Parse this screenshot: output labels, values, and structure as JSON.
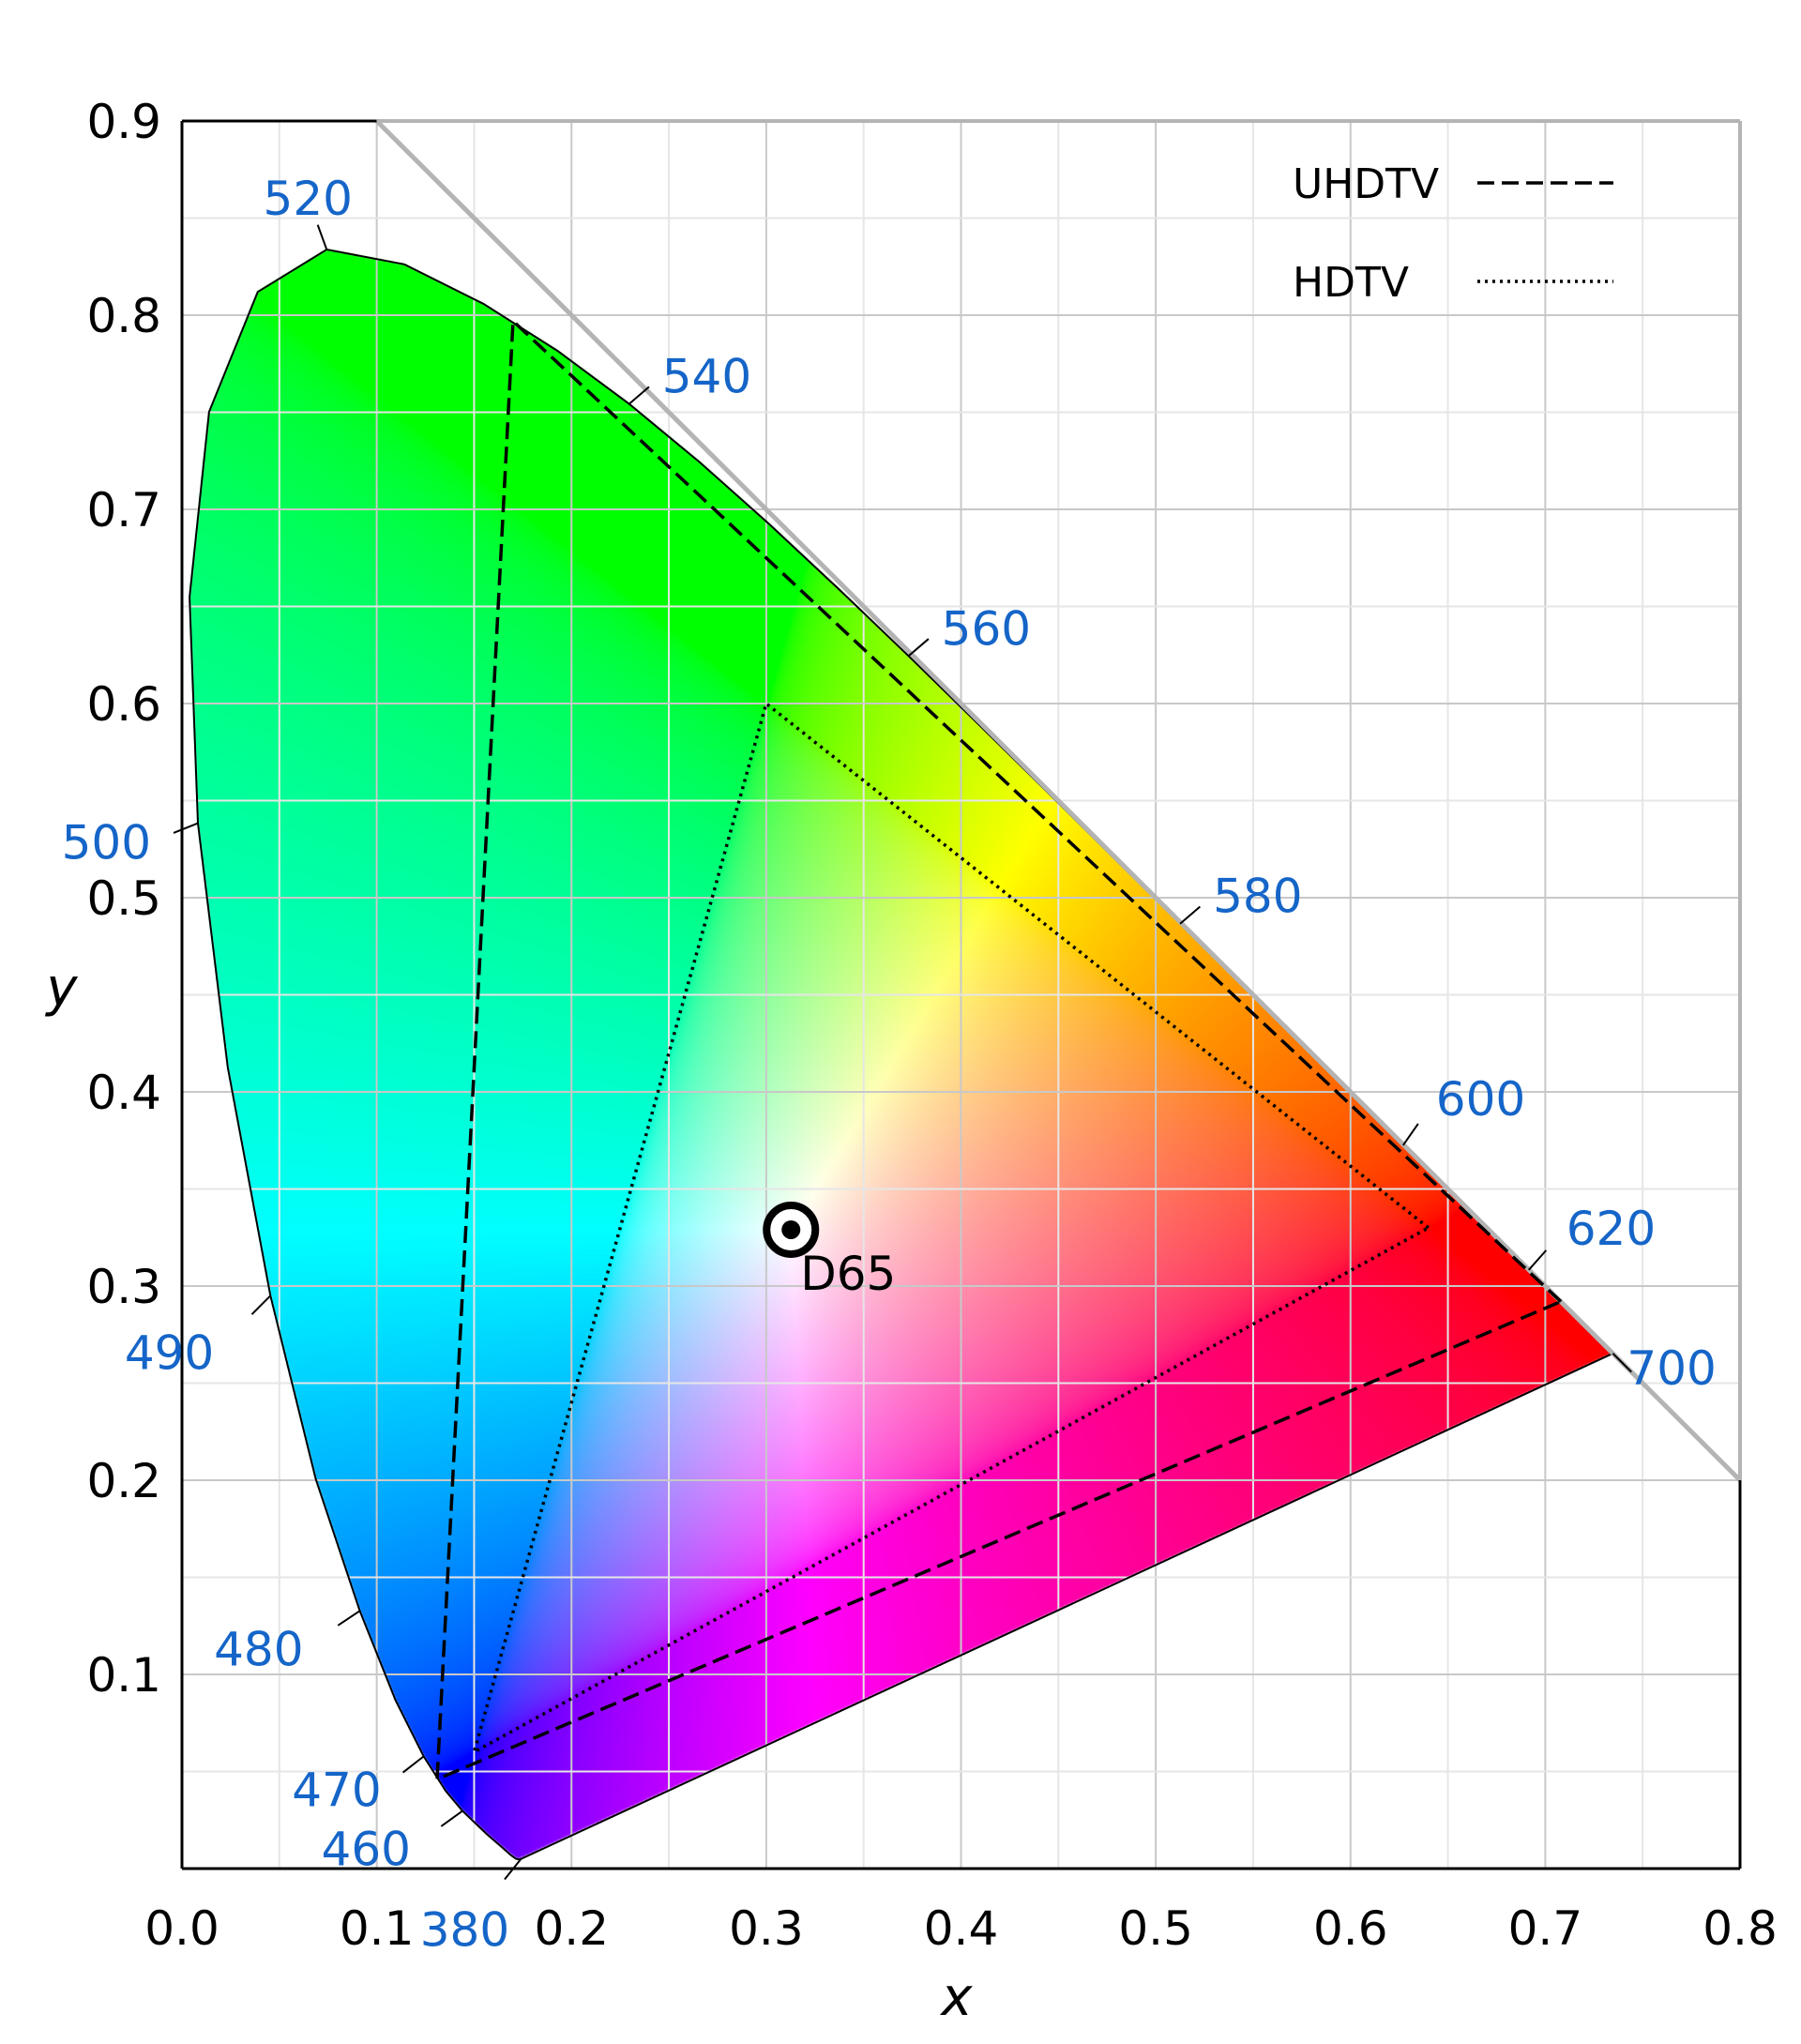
{
  "chart_data": {
    "type": "scatter",
    "title": "",
    "xlabel": "x",
    "ylabel": "y",
    "xlim": [
      0.0,
      0.8
    ],
    "ylim": [
      0.0,
      0.9
    ],
    "x_ticks": [
      "0.0",
      "0.1",
      "0.2",
      "0.3",
      "0.4",
      "0.5",
      "0.6",
      "0.7",
      "0.8"
    ],
    "y_ticks": [
      "0.1",
      "0.2",
      "0.3",
      "0.4",
      "0.5",
      "0.6",
      "0.7",
      "0.8",
      "0.9"
    ],
    "grid": true,
    "grid_minor_step": 0.05,
    "legend_position": "top-right",
    "boundary_line": {
      "from": [
        0.1,
        0.9
      ],
      "to": [
        0.8,
        0.2
      ],
      "color": "#b4b4b4"
    },
    "spectral_locus": [
      [
        380,
        0.1741,
        0.005
      ],
      [
        400,
        0.1733,
        0.0048
      ],
      [
        410,
        0.1726,
        0.0048
      ],
      [
        420,
        0.1714,
        0.0051
      ],
      [
        430,
        0.1689,
        0.0069
      ],
      [
        440,
        0.1644,
        0.0109
      ],
      [
        450,
        0.1566,
        0.0177
      ],
      [
        460,
        0.144,
        0.0297
      ],
      [
        465,
        0.1355,
        0.0399
      ],
      [
        470,
        0.1241,
        0.0578
      ],
      [
        475,
        0.1096,
        0.0868
      ],
      [
        480,
        0.0913,
        0.1327
      ],
      [
        485,
        0.0687,
        0.2007
      ],
      [
        490,
        0.0454,
        0.295
      ],
      [
        495,
        0.0235,
        0.4127
      ],
      [
        500,
        0.0082,
        0.5384
      ],
      [
        505,
        0.0039,
        0.6548
      ],
      [
        510,
        0.0139,
        0.7502
      ],
      [
        515,
        0.0389,
        0.812
      ],
      [
        520,
        0.0743,
        0.8338
      ],
      [
        525,
        0.1142,
        0.8262
      ],
      [
        530,
        0.1547,
        0.8059
      ],
      [
        535,
        0.1929,
        0.7816
      ],
      [
        540,
        0.2296,
        0.7543
      ],
      [
        545,
        0.2658,
        0.7243
      ],
      [
        550,
        0.3016,
        0.6923
      ],
      [
        555,
        0.3373,
        0.6589
      ],
      [
        560,
        0.3731,
        0.6245
      ],
      [
        565,
        0.4087,
        0.5896
      ],
      [
        570,
        0.4441,
        0.5547
      ],
      [
        575,
        0.4788,
        0.5202
      ],
      [
        580,
        0.5125,
        0.4866
      ],
      [
        585,
        0.5448,
        0.4544
      ],
      [
        590,
        0.5752,
        0.4242
      ],
      [
        595,
        0.6029,
        0.3965
      ],
      [
        600,
        0.627,
        0.3725
      ],
      [
        605,
        0.6482,
        0.3514
      ],
      [
        610,
        0.6658,
        0.334
      ],
      [
        620,
        0.6915,
        0.3083
      ],
      [
        630,
        0.7079,
        0.292
      ],
      [
        640,
        0.719,
        0.2809
      ],
      [
        650,
        0.726,
        0.274
      ],
      [
        660,
        0.73,
        0.27
      ],
      [
        680,
        0.7334,
        0.2666
      ],
      [
        700,
        0.7347,
        0.2653
      ]
    ],
    "wavelength_labels": [
      "380",
      "460",
      "470",
      "480",
      "490",
      "500",
      "520",
      "540",
      "560",
      "580",
      "600",
      "620",
      "700"
    ],
    "wavelength_label_color": "#1565c8",
    "series": [
      {
        "name": "UHDTV",
        "style": "dashed",
        "color": "#000000",
        "points": [
          [
            0.708,
            0.292
          ],
          [
            0.17,
            0.797
          ],
          [
            0.131,
            0.046
          ]
        ]
      },
      {
        "name": "HDTV",
        "style": "dotted",
        "color": "#000000",
        "points": [
          [
            0.64,
            0.33
          ],
          [
            0.3,
            0.6
          ],
          [
            0.15,
            0.06
          ]
        ]
      }
    ],
    "white_point": {
      "label": "D65",
      "x": 0.3127,
      "y": 0.329
    }
  }
}
